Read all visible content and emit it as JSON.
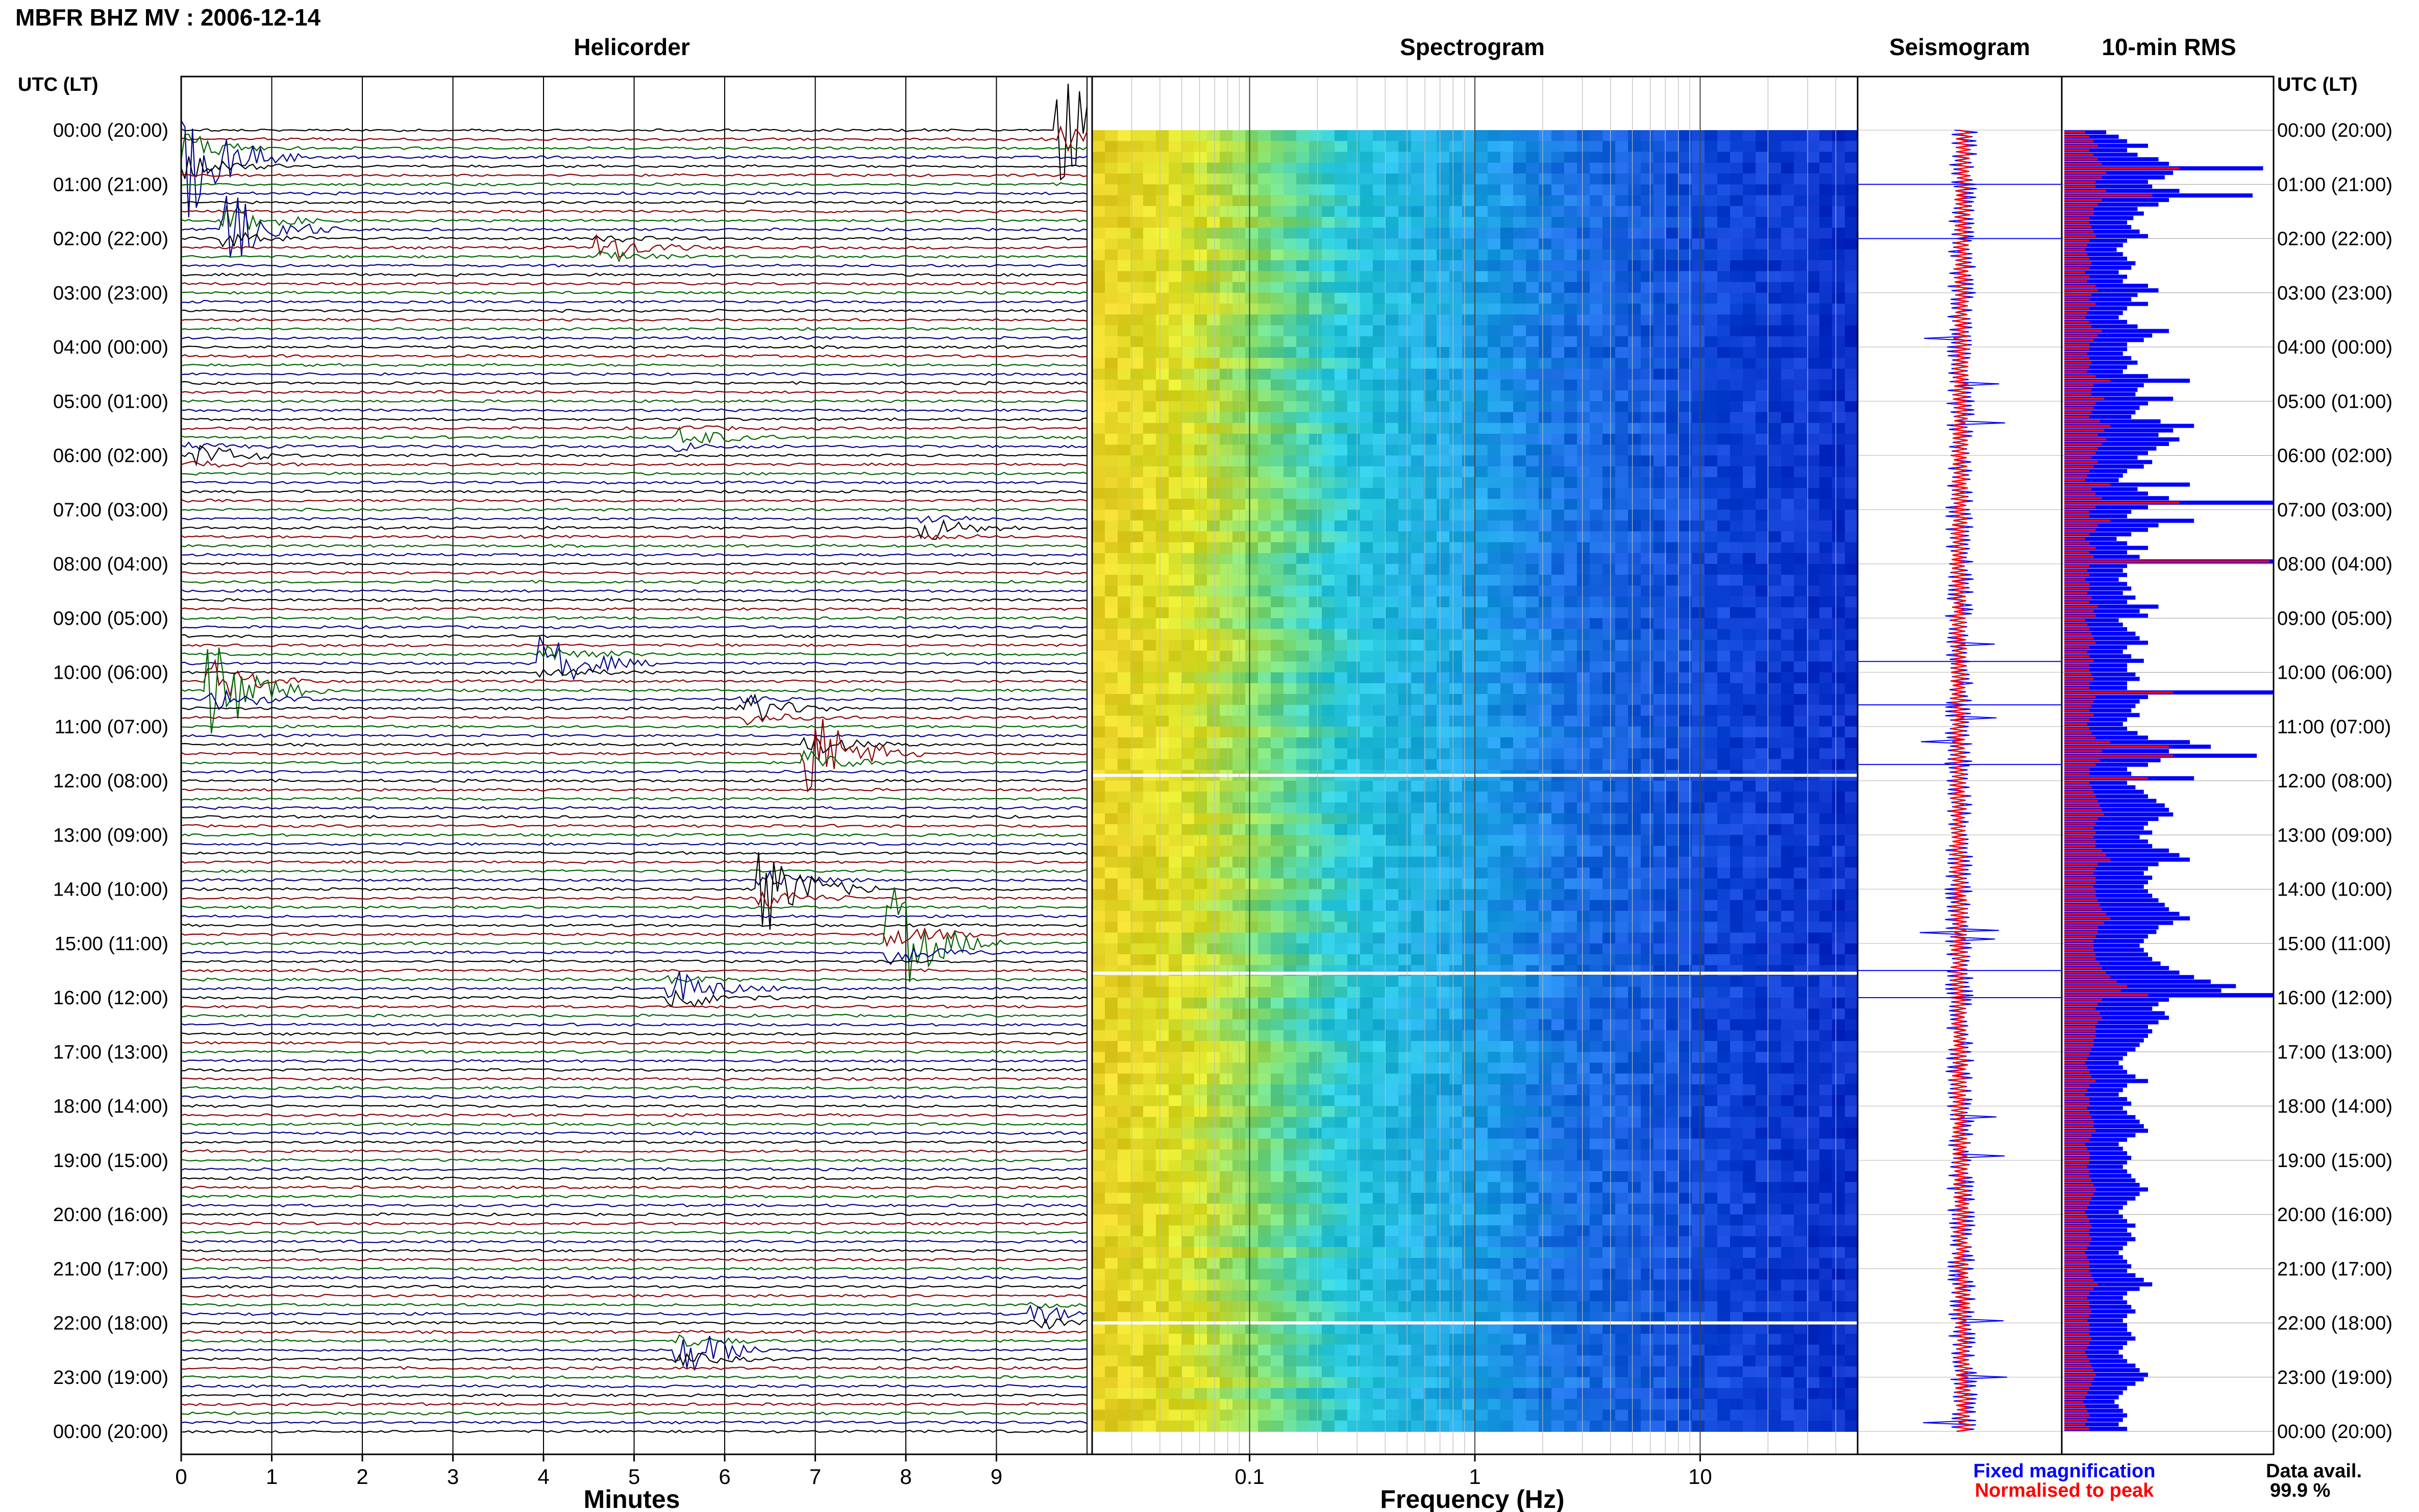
{
  "header": {
    "title": "MBFR BHZ MV : 2006-12-14",
    "utc_label_left": "UTC (LT)",
    "utc_label_right": "UTC (LT)"
  },
  "panels": {
    "helicorder": "Helicorder",
    "spectrogram": "Spectrogram",
    "seismogram": "Seismogram",
    "rms": "10-min RMS"
  },
  "axes": {
    "minutes_label": "Minutes",
    "frequency_label": "Frequency (Hz)",
    "minute_ticks": [
      "0",
      "1",
      "2",
      "3",
      "4",
      "5",
      "6",
      "7",
      "8",
      "9"
    ],
    "frequency_ticks": [
      "0.1",
      "1",
      "10"
    ]
  },
  "legend": {
    "fixed": "Fixed magnification",
    "normalised": "Normalised to peak",
    "fixed_color": "#0000ff",
    "normalised_color": "#ff0000"
  },
  "data_avail": {
    "label": "Data avail.",
    "value": "99.9 %"
  },
  "colors": {
    "trace_cycle": [
      "#000000",
      "#8b0000",
      "#006400",
      "#00008b"
    ],
    "spectro_low": "#e8e020",
    "spectro_mid": "#20c0e0",
    "spectro_high": "#0a2ec8"
  },
  "chart_data": {
    "type": "helicorder",
    "title": "MBFR BHZ MV : 2006-12-14",
    "hour_labels": [
      "00:00 (20:00)",
      "01:00 (21:00)",
      "02:00 (22:00)",
      "03:00 (23:00)",
      "04:00 (00:00)",
      "05:00 (01:00)",
      "06:00 (02:00)",
      "07:00 (03:00)",
      "08:00 (04:00)",
      "09:00 (05:00)",
      "10:00 (06:00)",
      "11:00 (07:00)",
      "12:00 (08:00)",
      "13:00 (09:00)",
      "14:00 (10:00)",
      "15:00 (11:00)",
      "16:00 (12:00)",
      "17:00 (13:00)",
      "18:00 (14:00)",
      "19:00 (15:00)",
      "20:00 (16:00)",
      "21:00 (17:00)",
      "22:00 (18:00)",
      "23:00 (19:00)",
      "00:00 (20:00)"
    ],
    "xlabel": "Minutes",
    "xlim": [
      0,
      10
    ],
    "spectrogram_xlabel": "Frequency (Hz)",
    "spectrogram_xlim": [
      0.02,
      50
    ],
    "events": [
      {
        "hour": 0.0,
        "minute": 9.8,
        "amp": 2.2
      },
      {
        "hour": 0.5,
        "minute": 0.1,
        "amp": 2.6
      },
      {
        "hour": 1.8,
        "minute": 0.6,
        "amp": 2.0
      },
      {
        "hour": 2.2,
        "minute": 4.7,
        "amp": 0.8
      },
      {
        "hour": 6.0,
        "minute": 0.2,
        "amp": 0.6
      },
      {
        "hour": 5.7,
        "minute": 5.6,
        "amp": 0.6
      },
      {
        "hour": 7.3,
        "minute": 8.3,
        "amp": 0.7
      },
      {
        "hour": 9.8,
        "minute": 4.1,
        "amp": 1.6
      },
      {
        "hour": 10.3,
        "minute": 0.4,
        "amp": 3.0
      },
      {
        "hour": 10.7,
        "minute": 6.3,
        "amp": 0.9
      },
      {
        "hour": 11.5,
        "minute": 7.0,
        "amp": 2.0
      },
      {
        "hour": 14.0,
        "minute": 6.5,
        "amp": 1.8
      },
      {
        "hour": 15.0,
        "minute": 7.9,
        "amp": 2.4
      },
      {
        "hour": 15.9,
        "minute": 5.5,
        "amp": 1.4
      },
      {
        "hour": 22.5,
        "minute": 5.6,
        "amp": 1.1
      },
      {
        "hour": 21.9,
        "minute": 9.5,
        "amp": 0.7
      }
    ],
    "rms_fixed": [
      0.2,
      0.26,
      0.3,
      0.4,
      0.3,
      0.35,
      0.45,
      0.5,
      0.95,
      0.52,
      0.48,
      0.4,
      0.42,
      0.55,
      0.9,
      0.5,
      0.45,
      0.35,
      0.38,
      0.33,
      0.3,
      0.32,
      0.36,
      0.4,
      0.3,
      0.28,
      0.25,
      0.28,
      0.3,
      0.34,
      0.32,
      0.26,
      0.3,
      0.28,
      0.4,
      0.45,
      0.35,
      0.32,
      0.4,
      0.3,
      0.28,
      0.26,
      0.3,
      0.35,
      0.5,
      0.42,
      0.38,
      0.3,
      0.3,
      0.28,
      0.32,
      0.35,
      0.3,
      0.28,
      0.4,
      0.6,
      0.38,
      0.35,
      0.34,
      0.52,
      0.4,
      0.36,
      0.34,
      0.32,
      0.46,
      0.62,
      0.52,
      0.45,
      0.55,
      0.5,
      0.44,
      0.4,
      0.35,
      0.42,
      0.38,
      0.3,
      0.28,
      0.26,
      0.6,
      0.35,
      0.4,
      0.5,
      1.0,
      0.4,
      0.32,
      0.3,
      0.62,
      0.45,
      0.4,
      0.32,
      0.25,
      0.3,
      0.4,
      0.3,
      0.36,
      1.0,
      0.3,
      0.28,
      0.3,
      0.26,
      0.3,
      0.32,
      0.28,
      0.34,
      0.3,
      0.45,
      0.36,
      0.4,
      0.26,
      0.28,
      0.3,
      0.34,
      0.36,
      0.4,
      0.3,
      0.28,
      0.32,
      0.38,
      0.3,
      0.3,
      0.34,
      0.36,
      0.3,
      0.3,
      1.0,
      0.4,
      0.36,
      0.34,
      0.32,
      0.36,
      0.3,
      0.28,
      0.3,
      0.35,
      0.4,
      0.6,
      0.7,
      0.5,
      0.92,
      0.46,
      0.4,
      0.3,
      0.32,
      0.62,
      0.3,
      0.34,
      0.38,
      0.4,
      0.44,
      0.48,
      0.5,
      0.52,
      0.45,
      0.4,
      0.38,
      0.42,
      0.36,
      0.4,
      0.42,
      0.5,
      0.55,
      0.6,
      0.45,
      0.4,
      0.38,
      0.42,
      0.4,
      0.38,
      0.4,
      0.42,
      0.45,
      0.48,
      0.5,
      0.55,
      0.6,
      0.52,
      0.45,
      0.44,
      0.4,
      0.38,
      0.36,
      0.38,
      0.4,
      0.42,
      0.46,
      0.5,
      0.55,
      0.62,
      0.7,
      0.82,
      0.75,
      1.0,
      0.5,
      0.45,
      0.42,
      0.48,
      0.5,
      0.45,
      0.4,
      0.42,
      0.4,
      0.38,
      0.36,
      0.34,
      0.3,
      0.28,
      0.26,
      0.28,
      0.3,
      0.34,
      0.4,
      0.3,
      0.28,
      0.26,
      0.3,
      0.32,
      0.28,
      0.3,
      0.34,
      0.36,
      0.38,
      0.4,
      0.34,
      0.3,
      0.26,
      0.28,
      0.3,
      0.32,
      0.3,
      0.28,
      0.3,
      0.32,
      0.34,
      0.36,
      0.4,
      0.36,
      0.34,
      0.3,
      0.28,
      0.26,
      0.28,
      0.3,
      0.34,
      0.3,
      0.32,
      0.34,
      0.3,
      0.28,
      0.26,
      0.28,
      0.3,
      0.32,
      0.3,
      0.34,
      0.38,
      0.42,
      0.36,
      0.3,
      0.28,
      0.3,
      0.32,
      0.34,
      0.3,
      0.28,
      0.3,
      0.3,
      0.32,
      0.34,
      0.3,
      0.28,
      0.26,
      0.28,
      0.3,
      0.34,
      0.36,
      0.4,
      0.38,
      0.34,
      0.3,
      0.28,
      0.26,
      0.24,
      0.26,
      0.28,
      0.3,
      0.28,
      0.26,
      0.3
    ],
    "rms_normalised": [
      0.1,
      0.12,
      0.14,
      0.16,
      0.12,
      0.14,
      0.16,
      0.18,
      0.55,
      0.2,
      0.18,
      0.15,
      0.15,
      0.2,
      0.42,
      0.18,
      0.16,
      0.14,
      0.14,
      0.12,
      0.12,
      0.13,
      0.14,
      0.15,
      0.12,
      0.11,
      0.1,
      0.11,
      0.12,
      0.13,
      0.12,
      0.1,
      0.12,
      0.11,
      0.15,
      0.16,
      0.13,
      0.12,
      0.15,
      0.12,
      0.11,
      0.1,
      0.12,
      0.13,
      0.18,
      0.16,
      0.14,
      0.12,
      0.12,
      0.11,
      0.12,
      0.13,
      0.12,
      0.11,
      0.15,
      0.22,
      0.14,
      0.13,
      0.13,
      0.19,
      0.15,
      0.14,
      0.13,
      0.12,
      0.17,
      0.22,
      0.19,
      0.16,
      0.2,
      0.18,
      0.16,
      0.15,
      0.13,
      0.16,
      0.14,
      0.12,
      0.11,
      0.1,
      0.22,
      0.13,
      0.15,
      0.18,
      0.55,
      0.15,
      0.12,
      0.12,
      0.22,
      0.16,
      0.15,
      0.12,
      0.1,
      0.12,
      0.15,
      0.12,
      0.14,
      0.98,
      0.12,
      0.11,
      0.12,
      0.1,
      0.12,
      0.12,
      0.11,
      0.13,
      0.12,
      0.16,
      0.14,
      0.15,
      0.1,
      0.11,
      0.12,
      0.13,
      0.14,
      0.15,
      0.12,
      0.11,
      0.12,
      0.14,
      0.12,
      0.12,
      0.13,
      0.14,
      0.12,
      0.12,
      0.52,
      0.15,
      0.14,
      0.13,
      0.12,
      0.14,
      0.12,
      0.11,
      0.12,
      0.13,
      0.15,
      0.22,
      0.5,
      0.18,
      0.52,
      0.17,
      0.15,
      0.12,
      0.12,
      0.4,
      0.12,
      0.13,
      0.14,
      0.15,
      0.16,
      0.17,
      0.18,
      0.19,
      0.16,
      0.15,
      0.14,
      0.15,
      0.14,
      0.15,
      0.15,
      0.18,
      0.2,
      0.22,
      0.16,
      0.15,
      0.14,
      0.15,
      0.15,
      0.14,
      0.15,
      0.15,
      0.16,
      0.17,
      0.18,
      0.2,
      0.22,
      0.19,
      0.16,
      0.16,
      0.15,
      0.14,
      0.14,
      0.14,
      0.15,
      0.15,
      0.17,
      0.18,
      0.2,
      0.22,
      0.25,
      0.3,
      0.27,
      0.4,
      0.18,
      0.16,
      0.15,
      0.17,
      0.18,
      0.16,
      0.15,
      0.15,
      0.15,
      0.14,
      0.14,
      0.13,
      0.12,
      0.11,
      0.1,
      0.11,
      0.12,
      0.13,
      0.15,
      0.12,
      0.11,
      0.1,
      0.12,
      0.12,
      0.11,
      0.12,
      0.13,
      0.14,
      0.14,
      0.15,
      0.13,
      0.12,
      0.1,
      0.11,
      0.12,
      0.12,
      0.12,
      0.11,
      0.12,
      0.12,
      0.13,
      0.14,
      0.15,
      0.14,
      0.13,
      0.12,
      0.11,
      0.1,
      0.11,
      0.12,
      0.13,
      0.12,
      0.12,
      0.13,
      0.12,
      0.11,
      0.1,
      0.11,
      0.12,
      0.12,
      0.12,
      0.13,
      0.14,
      0.16,
      0.14,
      0.12,
      0.11,
      0.12,
      0.12,
      0.13,
      0.12,
      0.11,
      0.12,
      0.12,
      0.12,
      0.13,
      0.12,
      0.11,
      0.1,
      0.11,
      0.12,
      0.13,
      0.14,
      0.15,
      0.14,
      0.13,
      0.12,
      0.11,
      0.1,
      0.09,
      0.1,
      0.11,
      0.12,
      0.11,
      0.1,
      0.12
    ]
  }
}
